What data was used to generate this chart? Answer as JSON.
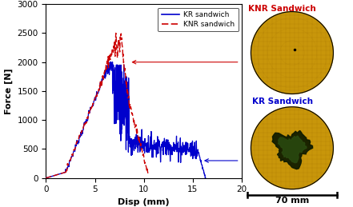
{
  "xlabel": "Disp (mm)",
  "ylabel": "Force [N]",
  "xlim": [
    0,
    20
  ],
  "ylim": [
    0,
    3000
  ],
  "xticks": [
    0,
    5,
    10,
    15,
    20
  ],
  "yticks": [
    0,
    500,
    1000,
    1500,
    2000,
    2500,
    3000
  ],
  "kr_color": "#0000cc",
  "knr_color": "#cc0000",
  "knr_sandwich_text": "KNR Sandwich",
  "kr_sandwich_text": "KR Sandwich",
  "scalebar_text": "70 mm",
  "circle_gold": "#C8960A",
  "circle_gold_dark": "#A07008",
  "circle_gold_light": "#D4A020",
  "background": "#f0f0f0"
}
